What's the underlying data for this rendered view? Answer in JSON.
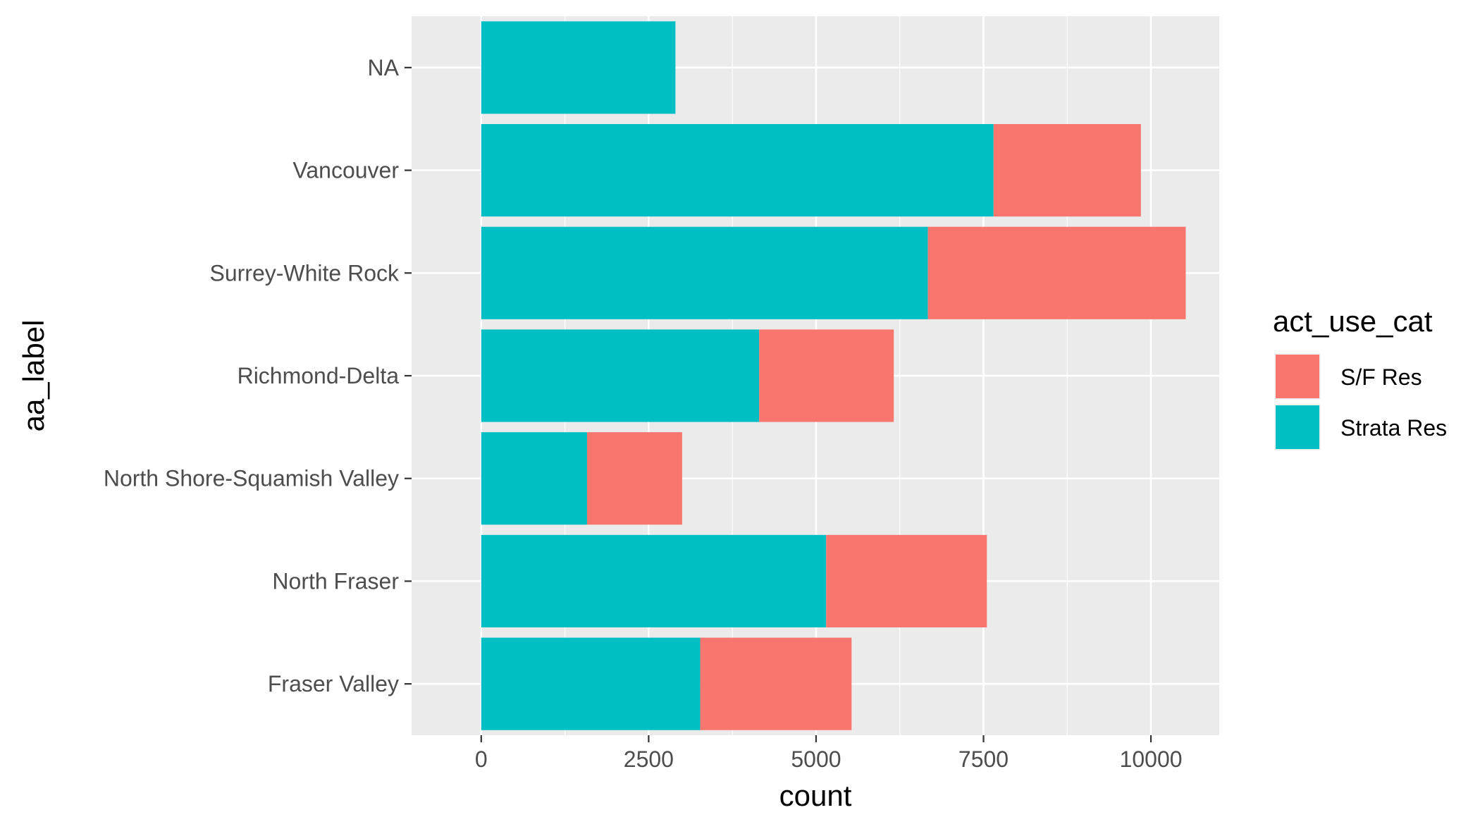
{
  "chart_data": {
    "type": "bar",
    "orientation": "horizontal",
    "stacked": true,
    "xlabel": "count",
    "ylabel": "aa_label",
    "xlim": [
      -1040,
      11020
    ],
    "xticks": [
      0,
      2500,
      5000,
      7500,
      10000
    ],
    "xtick_labels": [
      "0",
      "2500",
      "5000",
      "7500",
      "10000"
    ],
    "categories": [
      "NA",
      "Vancouver",
      "Surrey-White Rock",
      "Richmond-Delta",
      "North Shore-Squamish Valley",
      "North Fraser",
      "Fraser Valley"
    ],
    "series": [
      {
        "name": "Strata Res",
        "color": "#00BFC4",
        "values": [
          2900,
          7650,
          6670,
          4150,
          1580,
          5150,
          3270
        ]
      },
      {
        "name": "S/F Res",
        "color": "#F8766D",
        "values": [
          0,
          2200,
          3850,
          2010,
          1420,
          2400,
          2260
        ]
      }
    ],
    "legend": {
      "title": "act_use_cat",
      "position": "right",
      "items": [
        {
          "label": "S/F Res",
          "color": "#F8766D"
        },
        {
          "label": "Strata Res",
          "color": "#00BFC4"
        }
      ]
    },
    "grid": true,
    "panel_background": "#EBEBEB",
    "grid_color": "#FFFFFF"
  }
}
